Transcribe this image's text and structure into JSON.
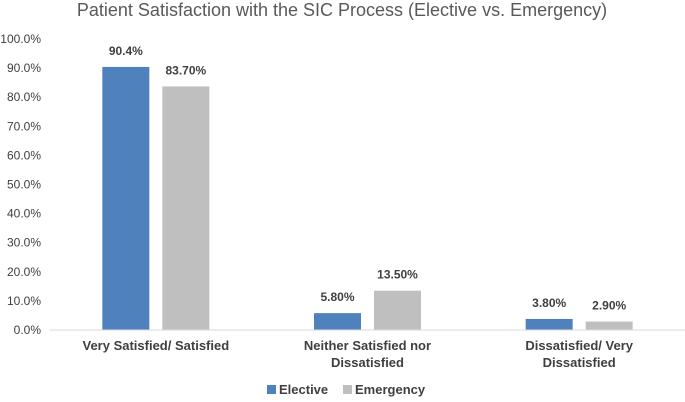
{
  "chart_data": {
    "type": "bar",
    "title": "Patient Satisfaction with the SIC Process (Elective vs. Emergency)",
    "xlabel": "",
    "ylabel": "",
    "ylim": [
      0,
      100
    ],
    "yticks": [
      "0.0%",
      "10.0%",
      "20.0%",
      "30.0%",
      "40.0%",
      "50.0%",
      "60.0%",
      "70.0%",
      "80.0%",
      "90.0%",
      "100.0%"
    ],
    "categories": [
      [
        "Very Satisfied/ Satisfied"
      ],
      [
        "Neither Satisfied nor",
        "Dissatisfied"
      ],
      [
        "Dissatisfied/ Very",
        "Dissatisfied"
      ]
    ],
    "series": [
      {
        "name": "Elective",
        "color": "#4f81bd",
        "values": [
          90.4,
          5.8,
          3.8
        ],
        "labels": [
          "90.4%",
          "5.80%",
          "3.80%"
        ]
      },
      {
        "name": "Emergency",
        "color": "#bfbfbf",
        "values": [
          83.7,
          13.5,
          2.9
        ],
        "labels": [
          "83.70%",
          "13.50%",
          "2.90%"
        ]
      }
    ],
    "legend_position": "bottom",
    "grid": false
  }
}
